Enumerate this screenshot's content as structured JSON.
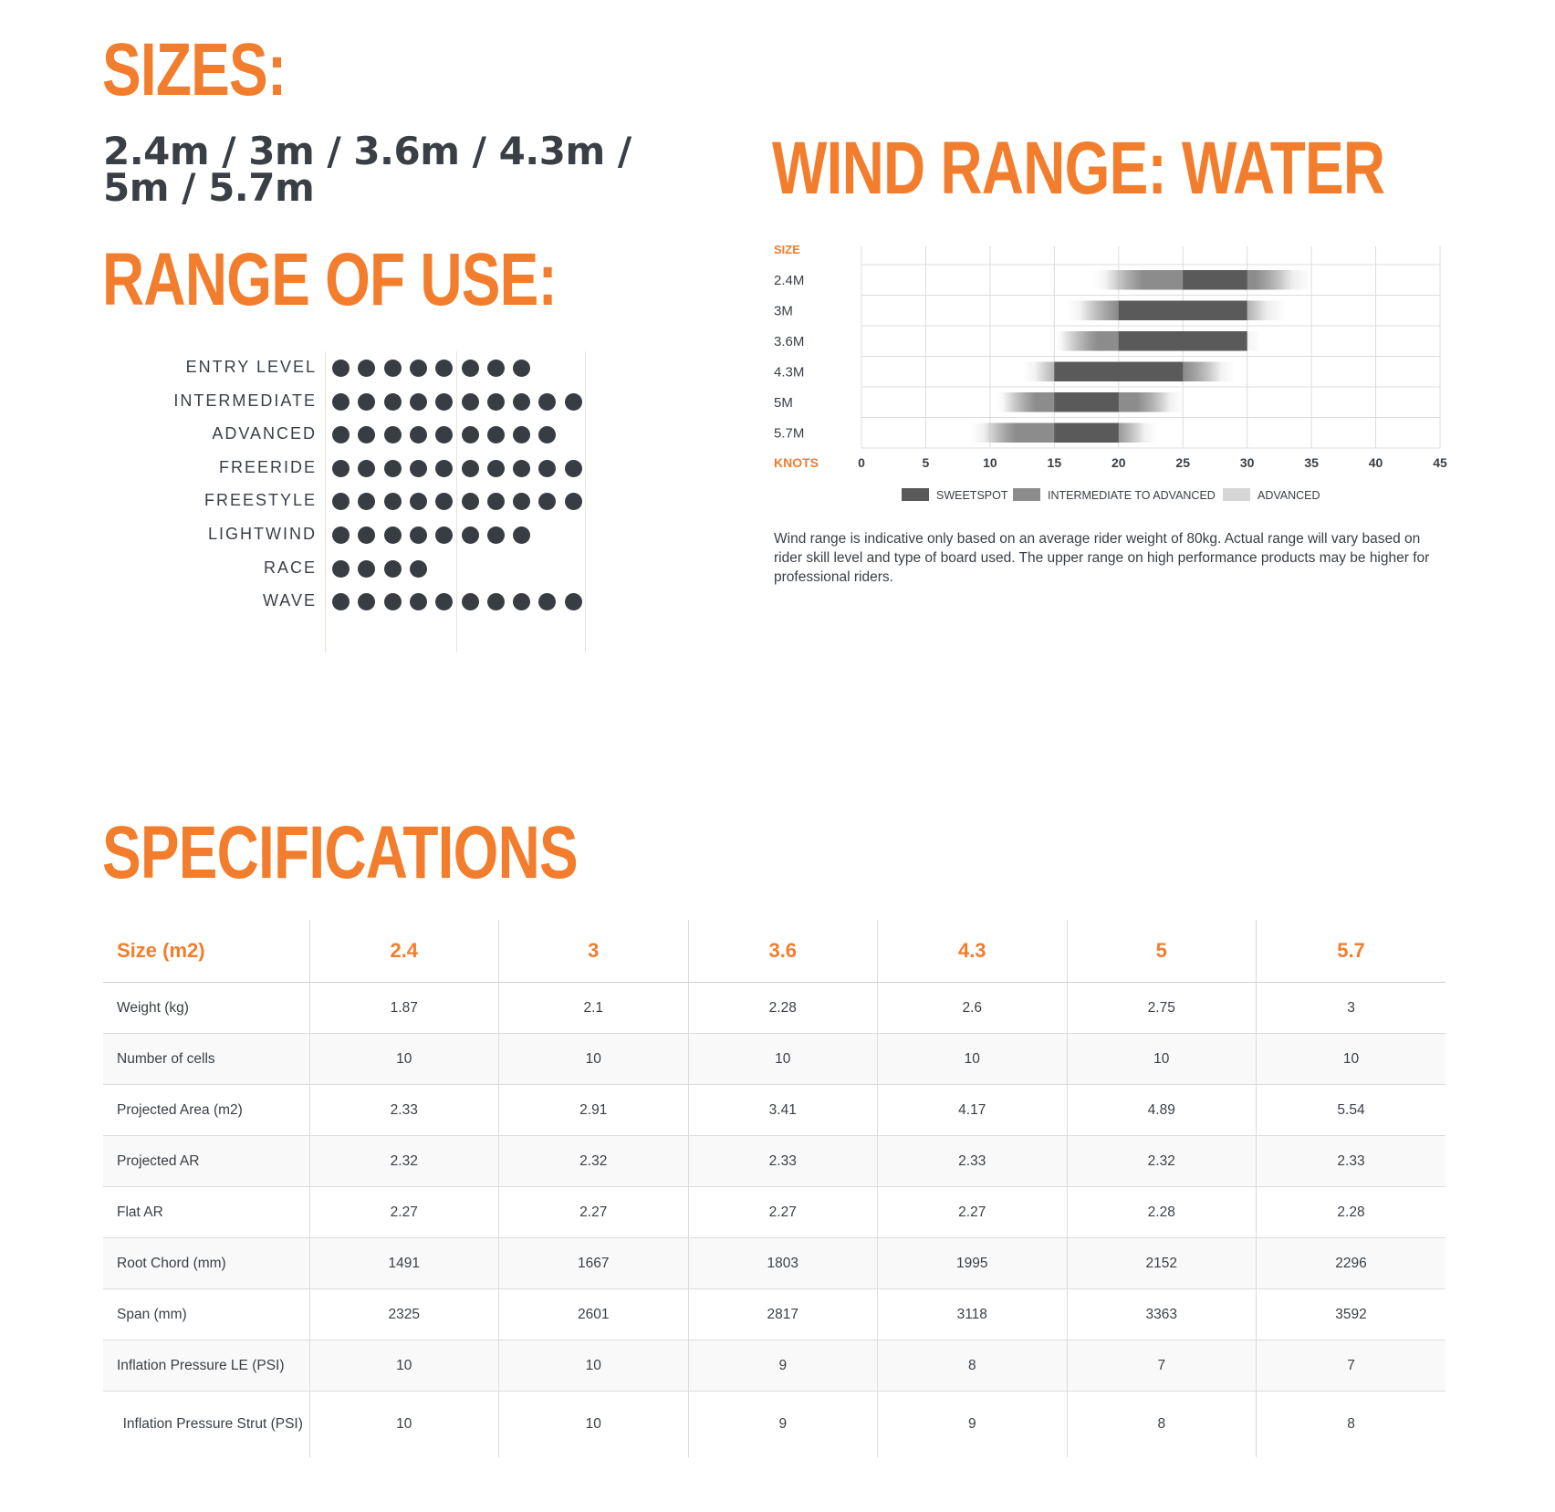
{
  "sizes": {
    "title": "SIZES:",
    "list": "2.4m / 3m / 3.6m / 4.3m / 5m / 5.7m"
  },
  "range_of_use": {
    "title": "RANGE OF USE:",
    "max_dots": 10,
    "rows": [
      {
        "label": "ENTRY LEVEL",
        "level": 8
      },
      {
        "label": "INTERMEDIATE",
        "level": 10
      },
      {
        "label": "ADVANCED",
        "level": 9
      },
      {
        "label": "FREERIDE",
        "level": 10
      },
      {
        "label": "FREESTYLE",
        "level": 10
      },
      {
        "label": "LIGHTWIND",
        "level": 8
      },
      {
        "label": "RACE",
        "level": 4
      },
      {
        "label": "WAVE",
        "level": 10
      }
    ]
  },
  "wind_range": {
    "title": "WIND RANGE: WATER",
    "note": "Wind range is indicative only based on an average rider weight of 80kg. Actual range will vary based on rider skill level and type of board used. The upper range on high performance products may be higher for professional riders."
  },
  "chart_data": {
    "type": "bar",
    "orientation": "horizontal-range",
    "ylabel": "SIZE",
    "xlabel": "KNOTS",
    "xticks": [
      0,
      5,
      10,
      15,
      20,
      25,
      30,
      35,
      40,
      45
    ],
    "xlim": [
      0,
      45
    ],
    "grid": true,
    "legend_position": "bottom-center",
    "legend": [
      {
        "label": "SWEETSPOT",
        "color": "#5a5a5a"
      },
      {
        "label": "INTERMEDIATE TO ADVANCED",
        "color": "#8c8c8c"
      },
      {
        "label": "ADVANCED",
        "color": "#d6d6d6"
      }
    ],
    "categories": [
      "2.4M",
      "3M",
      "3.6M",
      "4.3M",
      "5M",
      "5.7M"
    ],
    "series": [
      {
        "name": "ADVANCED",
        "ranges": [
          [
            18,
            35
          ],
          [
            16,
            33
          ],
          [
            15,
            31
          ],
          [
            12.5,
            29
          ],
          [
            10.5,
            25
          ],
          [
            8.5,
            23
          ]
        ]
      },
      {
        "name": "INTERMEDIATE TO ADVANCED",
        "ranges": [
          [
            19,
            33.5
          ],
          [
            17,
            31.5
          ],
          [
            15.5,
            30
          ],
          [
            13.5,
            28
          ],
          [
            11,
            24
          ],
          [
            9.5,
            22
          ]
        ]
      },
      {
        "name": "SWEETSPOT",
        "ranges": [
          [
            25,
            30
          ],
          [
            20,
            30
          ],
          [
            20,
            30
          ],
          [
            15,
            25
          ],
          [
            15,
            20
          ],
          [
            15,
            20
          ]
        ]
      }
    ]
  },
  "specifications": {
    "title": "SPECIFICATIONS",
    "header": [
      "Size (m2)",
      "2.4",
      "3",
      "3.6",
      "4.3",
      "5",
      "5.7"
    ],
    "rows": [
      [
        "Weight (kg)",
        "1.87",
        "2.1",
        "2.28",
        "2.6",
        "2.75",
        "3"
      ],
      [
        "Number of cells",
        "10",
        "10",
        "10",
        "10",
        "10",
        "10"
      ],
      [
        "Projected Area (m2)",
        "2.33",
        "2.91",
        "3.41",
        "4.17",
        "4.89",
        "5.54"
      ],
      [
        "Projected AR",
        "2.32",
        "2.32",
        "2.33",
        "2.33",
        "2.32",
        "2.33"
      ],
      [
        "Flat AR",
        "2.27",
        "2.27",
        "2.27",
        "2.27",
        "2.28",
        "2.28"
      ],
      [
        "Root Chord (mm)",
        "1491",
        "1667",
        "1803",
        "1995",
        "2152",
        "2296"
      ],
      [
        "Span (mm)",
        "2325",
        "2601",
        "2817",
        "3118",
        "3363",
        "3592"
      ],
      [
        "Inflation Pressure LE (PSI)",
        "10",
        "10",
        "9",
        "8",
        "7",
        "7"
      ],
      [
        "Inflation Pressure Strut (PSI)",
        "10",
        "10",
        "9",
        "9",
        "8",
        "8"
      ]
    ]
  },
  "colors": {
    "accent": "#f27d2d",
    "text": "#3a3f45",
    "dot": "#383d44"
  }
}
